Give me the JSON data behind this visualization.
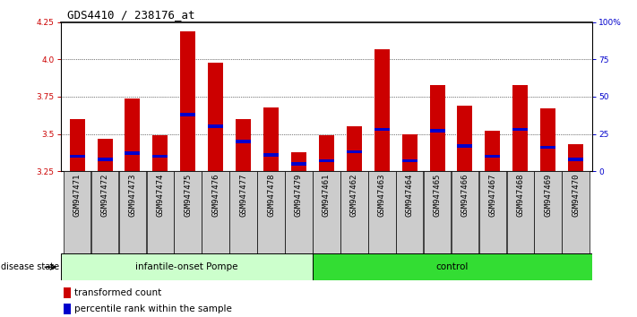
{
  "title": "GDS4410 / 238176_at",
  "samples": [
    "GSM947471",
    "GSM947472",
    "GSM947473",
    "GSM947474",
    "GSM947475",
    "GSM947476",
    "GSM947477",
    "GSM947478",
    "GSM947479",
    "GSM947461",
    "GSM947462",
    "GSM947463",
    "GSM947464",
    "GSM947465",
    "GSM947466",
    "GSM947467",
    "GSM947468",
    "GSM947469",
    "GSM947470"
  ],
  "transformed_count": [
    3.6,
    3.47,
    3.74,
    3.49,
    4.19,
    3.98,
    3.6,
    3.68,
    3.38,
    3.49,
    3.55,
    4.07,
    3.5,
    3.83,
    3.69,
    3.52,
    3.83,
    3.67,
    3.43
  ],
  "percentile_rank": [
    10,
    8,
    12,
    10,
    38,
    30,
    20,
    11,
    5,
    7,
    13,
    28,
    7,
    27,
    17,
    10,
    28,
    16,
    8
  ],
  "ymin": 3.25,
  "ymax": 4.25,
  "yticks_left": [
    3.25,
    3.5,
    3.75,
    4.0,
    4.25
  ],
  "yticks_right_pct": [
    0,
    25,
    50,
    75,
    100
  ],
  "yticks_right_labels": [
    "0",
    "25",
    "50",
    "75",
    "100%"
  ],
  "bar_color": "#cc0000",
  "blue_color": "#0000cc",
  "group1_label": "infantile-onset Pompe",
  "group2_label": "control",
  "group1_count": 9,
  "group2_count": 10,
  "legend1": "transformed count",
  "legend2": "percentile rank within the sample",
  "disease_state_label": "disease state",
  "group1_bg": "#ccffcc",
  "group2_bg": "#33dd33",
  "xtick_bg": "#cccccc",
  "title_fontsize": 9,
  "tick_fontsize": 6.5,
  "label_fontsize": 7.5
}
